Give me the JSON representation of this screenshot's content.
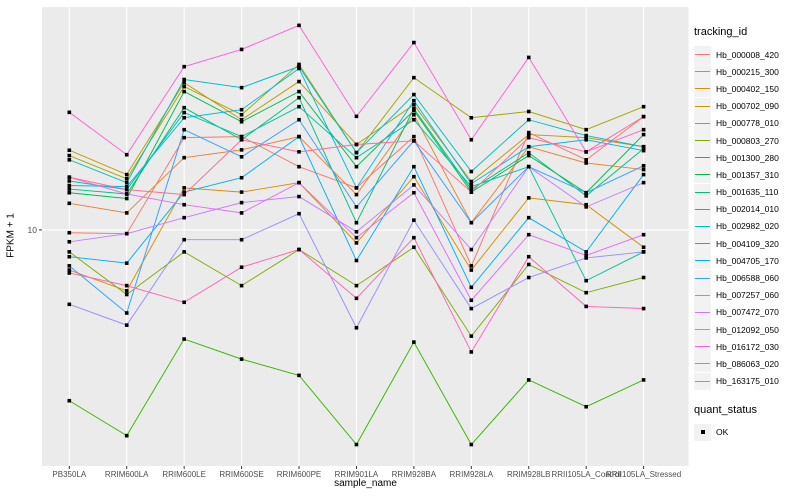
{
  "figure": {
    "background": "#FFFFFF",
    "panel_background": "#EBEBEB",
    "gridline_color": "#FFFFFF",
    "tick_color": "#333333",
    "axis_text_color": "#4D4D4D",
    "point_color": "#000000"
  },
  "axes": {
    "x_title": "sample_name",
    "y_title": "FPKM + 1",
    "y_tick_label": "10"
  },
  "legend": {
    "tracking_title": "tracking_id",
    "quant_title": "quant_status",
    "quant_ok_label": "OK"
  },
  "chart_data": {
    "type": "line",
    "title": "",
    "xlabel": "sample_name",
    "ylabel": "FPKM + 1",
    "y_scale": "log10",
    "y_ticks": [
      10
    ],
    "ylim_log10": [
      -0.0972,
      2.0412
    ],
    "grid": true,
    "legend_position": "right",
    "point_marker": "filled-square-black",
    "quant_status_legend": [
      "OK"
    ],
    "categories": [
      "PB350LA",
      "RRIM600LA",
      "RRIM600LE",
      "RRIM600SE",
      "RRIM600PE",
      "RRIM901LA",
      "RRIM928BA",
      "RRIM928LA",
      "RRIM928LB",
      "RRII105LA_Control",
      "RRII105LA_Stressed"
    ],
    "series": [
      {
        "name": "Hb_000008_420",
        "color": "#F8766D",
        "values": [
          9.7,
          9.6,
          26.9,
          27.2,
          19.7,
          15.7,
          27.2,
          6.8,
          28.4,
          21.2,
          33.7
        ]
      },
      {
        "name": "Hb_000215_300",
        "color": "#EA8331",
        "values": [
          13.3,
          12.0,
          21.7,
          23.6,
          27.2,
          14.6,
          34.4,
          10.8,
          24.4,
          20.5,
          19.1
        ]
      },
      {
        "name": "Hb_000402_150",
        "color": "#D89000",
        "values": [
          6.5,
          5.2,
          15.7,
          15.0,
          16.6,
          8.7,
          17.7,
          6.5,
          14.1,
          13.1,
          8.3
        ]
      },
      {
        "name": "Hb_000702_090",
        "color": "#C09B00",
        "values": [
          23.5,
          18.1,
          48.5,
          32.6,
          49.1,
          25.0,
          38.3,
          16.8,
          27.8,
          26.9,
          24.4
        ]
      },
      {
        "name": "Hb_000778_010",
        "color": "#A3A500",
        "values": [
          22.2,
          17.3,
          46.5,
          34.4,
          59.0,
          22.9,
          51.2,
          33.3,
          35.6,
          29.3,
          37.5
        ]
      },
      {
        "name": "Hb_000803_270",
        "color": "#7CAE00",
        "values": [
          7.9,
          5.0,
          7.9,
          5.5,
          8.1,
          5.5,
          8.3,
          3.2,
          6.9,
          5.1,
          6.0
        ]
      },
      {
        "name": "Hb_001300_280",
        "color": "#39B600",
        "values": [
          1.6,
          1.1,
          3.1,
          2.5,
          2.1,
          1.0,
          3.0,
          1.0,
          2.0,
          1.5,
          2.0
        ]
      },
      {
        "name": "Hb_001357_310",
        "color": "#00BB4E",
        "values": [
          14.9,
          14.0,
          44.1,
          31.9,
          44.1,
          19.7,
          36.0,
          15.0,
          22.2,
          14.9,
          27.8
        ]
      },
      {
        "name": "Hb_001635_110",
        "color": "#00BF7D",
        "values": [
          15.5,
          14.7,
          37.1,
          26.3,
          41.3,
          10.8,
          36.7,
          15.4,
          22.9,
          14.4,
          23.9
        ]
      },
      {
        "name": "Hb_002014_010",
        "color": "#00C1A3",
        "values": [
          16.9,
          15.4,
          35.2,
          27.2,
          37.5,
          21.7,
          32.6,
          15.9,
          19.7,
          5.8,
          7.9
        ]
      },
      {
        "name": "Hb_002982_020",
        "color": "#00BFC4",
        "values": [
          21.2,
          16.6,
          50.2,
          46.0,
          57.7,
          22.9,
          42.7,
          18.7,
          32.6,
          27.5,
          24.4
        ]
      },
      {
        "name": "Hb_004109_320",
        "color": "#00BAE0",
        "values": [
          16.1,
          15.9,
          33.3,
          36.3,
          56.5,
          15.7,
          40.0,
          16.4,
          24.4,
          26.3,
          23.4
        ]
      },
      {
        "name": "Hb_004705_170",
        "color": "#00B0F6",
        "values": [
          7.5,
          7.0,
          15.0,
          17.5,
          27.2,
          7.2,
          19.7,
          5.4,
          11.4,
          7.9,
          18.1
        ]
      },
      {
        "name": "Hb_006588_060",
        "color": "#35A2FF",
        "values": [
          6.8,
          4.1,
          29.3,
          21.9,
          32.6,
          12.8,
          26.0,
          10.8,
          19.7,
          14.9,
          19.9
        ]
      },
      {
        "name": "Hb_007257_060",
        "color": "#9590FF",
        "values": [
          4.5,
          3.6,
          9.0,
          9.0,
          11.9,
          3.5,
          11.1,
          4.3,
          6.0,
          7.4,
          7.9
        ]
      },
      {
        "name": "Hb_007472_070",
        "color": "#C77CFF",
        "values": [
          8.8,
          9.6,
          11.4,
          13.4,
          14.3,
          9.8,
          16.2,
          8.1,
          19.7,
          12.8,
          16.6
        ]
      },
      {
        "name": "Hb_012092_050",
        "color": "#E76BF3",
        "values": [
          17.6,
          14.7,
          13.1,
          12.0,
          16.6,
          9.2,
          14.9,
          4.7,
          9.5,
          7.6,
          9.5
        ]
      },
      {
        "name": "Hb_016172_030",
        "color": "#FA62DB",
        "values": [
          35.3,
          22.4,
          57.6,
          69.3,
          89.7,
          33.8,
          74.6,
          26.3,
          63.6,
          23.1,
          29.3
        ]
      },
      {
        "name": "Hb_086063_020",
        "color": "#FF62BC",
        "values": [
          6.3,
          5.5,
          4.6,
          6.7,
          8.1,
          4.8,
          9.2,
          2.7,
          7.5,
          4.4,
          4.3
        ]
      },
      {
        "name": "Hb_163175_010",
        "color": "#FF6A98",
        "values": [
          17.6,
          15.4,
          14.6,
          26.3,
          23.1,
          25.0,
          26.0,
          15.0,
          26.9,
          23.1,
          33.7
        ]
      }
    ]
  }
}
